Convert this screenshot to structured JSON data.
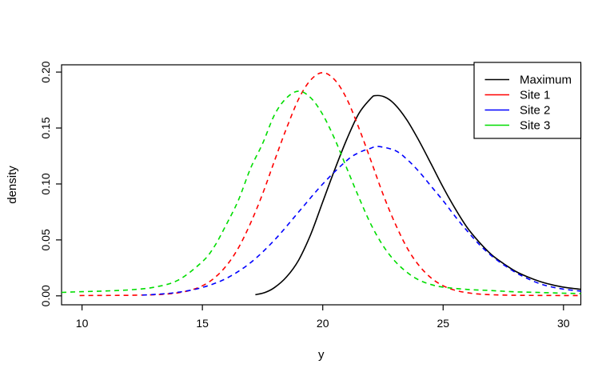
{
  "figure": {
    "background": "#FFFFFF",
    "axis_color": "#000000",
    "text_color": "#000000"
  },
  "chart_data": {
    "type": "line",
    "title": "",
    "xlabel": "y",
    "ylabel": "density",
    "xlim": [
      9.15,
      30.72
    ],
    "ylim": [
      -0.008,
      0.2065
    ],
    "xticks": [
      10,
      15,
      20,
      25,
      30
    ],
    "yticks": [
      0,
      0.05,
      0.1,
      0.15,
      0.2
    ],
    "ytick_labels": [
      "0.00",
      "0.05",
      "0.10",
      "0.15",
      "0.20"
    ],
    "grid": false,
    "box": true,
    "legend": {
      "position": "topright",
      "border": true,
      "entries": [
        "Maximum",
        "Site 1",
        "Site 2",
        "Site 3"
      ]
    },
    "series": [
      {
        "name": "Maximum",
        "color": "#000000",
        "style": "solid",
        "peak": {
          "x": 22.2,
          "y": 0.179
        },
        "points": [
          [
            17.2,
            0.001
          ],
          [
            17.6,
            0.003
          ],
          [
            18,
            0.0075
          ],
          [
            18.5,
            0.017
          ],
          [
            19,
            0.032
          ],
          [
            19.5,
            0.055
          ],
          [
            20,
            0.084
          ],
          [
            20.5,
            0.113
          ],
          [
            21,
            0.14
          ],
          [
            21.5,
            0.163
          ],
          [
            22,
            0.1765
          ],
          [
            22.2,
            0.179
          ],
          [
            22.6,
            0.1775
          ],
          [
            23,
            0.171
          ],
          [
            23.5,
            0.157
          ],
          [
            24,
            0.1385
          ],
          [
            24.5,
            0.118
          ],
          [
            25,
            0.097
          ],
          [
            25.5,
            0.078
          ],
          [
            26,
            0.061
          ],
          [
            26.5,
            0.048
          ],
          [
            27,
            0.037
          ],
          [
            27.5,
            0.029
          ],
          [
            28,
            0.022
          ],
          [
            28.5,
            0.017
          ],
          [
            29,
            0.013
          ],
          [
            29.5,
            0.01
          ],
          [
            30,
            0.0078
          ],
          [
            30.72,
            0.0058
          ]
        ]
      },
      {
        "name": "Site 1",
        "color": "#FF0000",
        "style": "dashed",
        "peak": {
          "x": 20.0,
          "y": 0.1995
        },
        "points": [
          [
            9.9,
            0.0003
          ],
          [
            11,
            0.0004
          ],
          [
            12,
            0.0005
          ],
          [
            13,
            0.001
          ],
          [
            13.5,
            0.0016
          ],
          [
            14,
            0.0028
          ],
          [
            14.5,
            0.005
          ],
          [
            15,
            0.009
          ],
          [
            15.5,
            0.016
          ],
          [
            16,
            0.027
          ],
          [
            16.5,
            0.043
          ],
          [
            17,
            0.065
          ],
          [
            17.5,
            0.091
          ],
          [
            18,
            0.121
          ],
          [
            18.5,
            0.15
          ],
          [
            19,
            0.176
          ],
          [
            19.5,
            0.193
          ],
          [
            20,
            0.1995
          ],
          [
            20.5,
            0.193
          ],
          [
            21,
            0.176
          ],
          [
            21.5,
            0.15
          ],
          [
            22,
            0.121
          ],
          [
            22.5,
            0.091
          ],
          [
            23,
            0.065
          ],
          [
            23.5,
            0.043
          ],
          [
            24,
            0.027
          ],
          [
            24.5,
            0.016
          ],
          [
            25,
            0.009
          ],
          [
            25.5,
            0.005
          ],
          [
            26,
            0.0028
          ],
          [
            26.5,
            0.0016
          ],
          [
            27,
            0.001
          ],
          [
            28,
            0.0005
          ],
          [
            29,
            0.0004
          ],
          [
            30,
            0.0003
          ],
          [
            30.72,
            0.0003
          ]
        ]
      },
      {
        "name": "Site 2",
        "color": "#0000FF",
        "style": "dashed",
        "peak": {
          "x": 22.3,
          "y": 0.1335
        },
        "points": [
          [
            12.5,
            0.0007
          ],
          [
            13,
            0.0012
          ],
          [
            14,
            0.0032
          ],
          [
            15,
            0.0075
          ],
          [
            16,
            0.0157
          ],
          [
            17,
            0.0296
          ],
          [
            18,
            0.05
          ],
          [
            19,
            0.075
          ],
          [
            20,
            0.1
          ],
          [
            21,
            0.121
          ],
          [
            21.5,
            0.128
          ],
          [
            22,
            0.132
          ],
          [
            22.3,
            0.1335
          ],
          [
            23,
            0.13
          ],
          [
            23.5,
            0.122
          ],
          [
            24,
            0.111
          ],
          [
            24.5,
            0.098
          ],
          [
            25,
            0.085
          ],
          [
            25.5,
            0.071
          ],
          [
            26,
            0.058
          ],
          [
            26.5,
            0.046
          ],
          [
            27,
            0.036
          ],
          [
            27.5,
            0.028
          ],
          [
            28,
            0.021
          ],
          [
            28.5,
            0.0155
          ],
          [
            29,
            0.011
          ],
          [
            29.5,
            0.008
          ],
          [
            30,
            0.006
          ],
          [
            30.72,
            0.0042
          ]
        ]
      },
      {
        "name": "Site 3",
        "color": "#00DD00",
        "style": "dashed",
        "peak": {
          "x": 19.0,
          "y": 0.183
        },
        "points": [
          [
            9.15,
            0.0031
          ],
          [
            10,
            0.0037
          ],
          [
            11,
            0.0044
          ],
          [
            12,
            0.0054
          ],
          [
            13,
            0.0077
          ],
          [
            14,
            0.0141
          ],
          [
            15,
            0.0306
          ],
          [
            15.5,
            0.0442
          ],
          [
            16,
            0.064
          ],
          [
            16.5,
            0.0857
          ],
          [
            17,
            0.114
          ],
          [
            17.5,
            0.136
          ],
          [
            18,
            0.162
          ],
          [
            18.5,
            0.177
          ],
          [
            19,
            0.183
          ],
          [
            19.5,
            0.177
          ],
          [
            20,
            0.162
          ],
          [
            20.5,
            0.14
          ],
          [
            21,
            0.114
          ],
          [
            21.5,
            0.088
          ],
          [
            22,
            0.064
          ],
          [
            22.5,
            0.045
          ],
          [
            23,
            0.031
          ],
          [
            23.5,
            0.021
          ],
          [
            24,
            0.0141
          ],
          [
            24.5,
            0.0101
          ],
          [
            25,
            0.0078
          ],
          [
            26,
            0.0057
          ],
          [
            27,
            0.0047
          ],
          [
            28,
            0.0036
          ],
          [
            29,
            0.003
          ],
          [
            30,
            0.0024
          ],
          [
            30.72,
            0.002
          ]
        ]
      }
    ]
  }
}
